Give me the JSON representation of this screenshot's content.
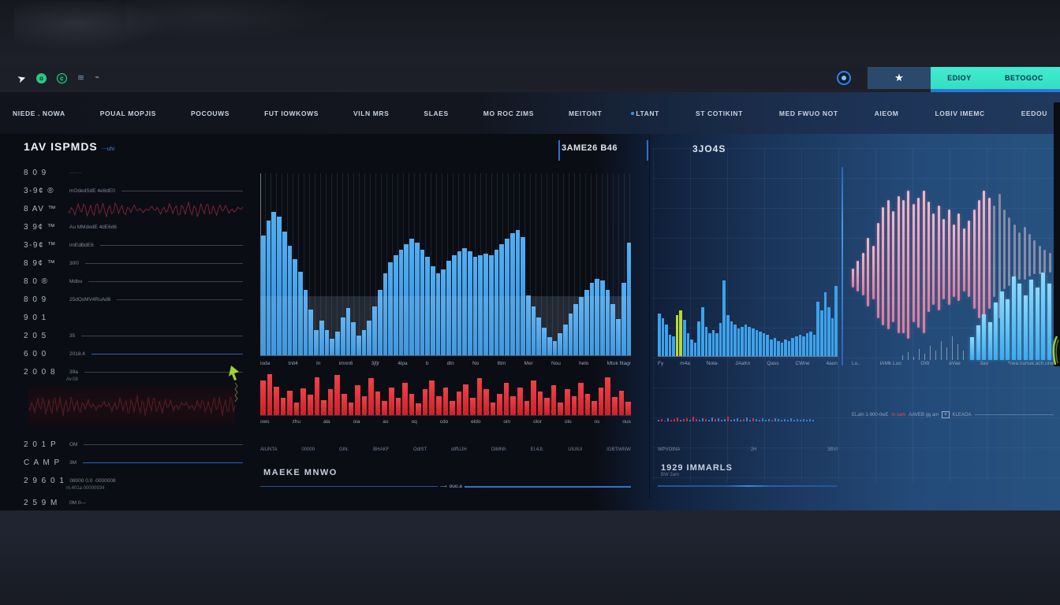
{
  "toolbar": {
    "icons": {
      "cursor": "➤",
      "app_a": "o",
      "app_b": "c",
      "layers": "≋",
      "pulse": "⌁",
      "star": "★"
    },
    "buy_label": "EDIOY",
    "sell_label": "BETOGOC"
  },
  "nav": {
    "left_items": [
      "NIEDE . NOWA",
      "POUAL MOPJIS",
      "POCOUWS",
      "FUT IOWKOWS",
      "VILN MRS",
      "SLAES",
      "MO ROC ZIMS",
      "MEITONT"
    ],
    "right_items": [
      "LTANT",
      "ST COTIKINT",
      "MED FWUO NOT",
      "AIEOM",
      "LOBIV IMEMC",
      "EEDOU"
    ]
  },
  "left_panel": {
    "title": "1AV ISPMDS",
    "title_suffix": "⋯uhi",
    "rows_top": [
      {
        "label": "8 0 9",
        "value": "·······",
        "line": "none"
      },
      {
        "label": "3-9¢ ®",
        "value": "mOdedSdE 4e8dE0",
        "line": "gray"
      },
      {
        "label": "8 AV ™",
        "value": "",
        "line": "spark"
      },
      {
        "label": "3 9¢ ™",
        "value": "Au MMdedE 4dE6d6",
        "line": "none"
      },
      {
        "label": "3-9¢ ™",
        "value": "imEdBdE6",
        "line": "gray"
      },
      {
        "label": "8 9¢ ™",
        "value": "30©",
        "line": "gray"
      },
      {
        "label": "8 0 ®",
        "value": "Mdbu",
        "line": "gray"
      },
      {
        "label": "8 0 9",
        "value": "25dOsMV4RuAd6",
        "line": "gray"
      },
      {
        "label": "9 0 1",
        "value": "",
        "line": "none"
      },
      {
        "label": "2 0 5",
        "value": "35",
        "line": "gray"
      },
      {
        "label": "6 0 0",
        "value": "2018.4",
        "line": "blue"
      },
      {
        "label": "2 0 0 8",
        "value": "39a",
        "line": "gray",
        "sub": "Av.08"
      }
    ],
    "rows_bottom": [
      {
        "label": "2 0 1 P",
        "value": "OM",
        "line": "gray"
      },
      {
        "label": "C A M P",
        "value": "3M",
        "line": "blue"
      },
      {
        "label": "2 9 6 0 1",
        "value": "08000   0.0   ·0000008",
        "line": "none",
        "sub": "m.401a  00000934"
      },
      {
        "label": "2 5 9 M",
        "value": "0M 0—",
        "line": "none"
      }
    ]
  },
  "main_panel": {
    "header_label": "3AME26 B46",
    "bars": [
      66,
      74,
      79,
      76,
      68,
      60,
      53,
      46,
      36,
      25,
      14,
      19,
      14,
      9,
      13,
      21,
      26,
      18,
      11,
      14,
      19,
      27,
      36,
      45,
      51,
      55,
      58,
      61,
      64,
      62,
      58,
      54,
      49,
      45,
      47,
      52,
      55,
      57,
      59,
      57,
      54,
      55,
      56,
      55,
      58,
      61,
      64,
      67,
      69,
      65,
      33,
      27,
      21,
      15,
      10,
      8,
      12,
      17,
      23,
      28,
      32,
      36,
      40,
      42,
      41,
      36,
      28,
      20,
      40,
      62
    ],
    "x_labels": [
      "ioda",
      "tnit4",
      "In",
      "imnn6",
      "3jfjr",
      "4ipa",
      "b",
      "dtn",
      "No",
      "Ittm",
      "Mer",
      "Nou",
      "helo",
      "Mtuk fitagr"
    ],
    "red_bars": [
      78,
      92,
      64,
      38,
      55,
      28,
      60,
      45,
      85,
      33,
      58,
      90,
      48,
      28,
      66,
      42,
      82,
      52,
      32,
      62,
      38,
      72,
      48,
      26,
      58,
      78,
      42,
      62,
      32,
      52,
      68,
      38,
      82,
      58,
      28,
      48,
      72,
      42,
      62,
      32,
      78,
      52,
      38,
      66,
      28,
      58,
      42,
      72,
      48,
      32,
      62,
      85,
      40,
      55,
      30
    ],
    "red_x_labels": [
      "ows",
      "zhu",
      "ala",
      "oia",
      "ao",
      "oq",
      "cdo",
      "eldo",
      "oin",
      "olor",
      "olo",
      "os",
      "ous"
    ],
    "tick_labels": [
      "AIUNTA",
      "00000",
      "GIN.",
      "BHAKF",
      "OdIST",
      "diffUJH",
      "OIMNh",
      "EI.4JI.",
      "UIUIUI",
      "IOBTiWNW"
    ],
    "footer_label": "MAEKE MNWO",
    "slider_arrow": "⟶",
    "slider_label": "ouo.a"
  },
  "mid_panel": {
    "title": "3JO4S",
    "bars": [
      52,
      46,
      38,
      26,
      24,
      50,
      56,
      44,
      28,
      20,
      16,
      42,
      60,
      36,
      28,
      32,
      28,
      40,
      92,
      50,
      42,
      38,
      34,
      36,
      38,
      36,
      34,
      32,
      30,
      28,
      26,
      20,
      22,
      18,
      16,
      20,
      18,
      22,
      24,
      26,
      24,
      28,
      30,
      26,
      66,
      56,
      78,
      60,
      46,
      86
    ],
    "green_indices": [
      5,
      6
    ],
    "x_labels": [
      "Fy",
      "m4a",
      "Nola-",
      "JAaKn",
      "Qass",
      "CWne",
      "4aun"
    ],
    "spark_h": [
      2,
      3,
      1,
      4,
      2,
      3,
      5,
      2,
      3,
      4,
      2,
      6,
      3,
      2,
      4,
      3,
      2,
      5,
      3,
      4,
      2,
      3,
      6,
      2,
      3,
      4,
      2,
      3,
      5,
      2,
      4,
      3,
      2,
      4,
      2,
      3,
      2,
      4,
      3,
      2,
      3,
      2,
      4,
      2,
      3,
      2,
      3,
      2,
      3,
      2
    ],
    "spark_c": "brrbrrrbrrbrrbbrbbrbbbrbbbbrbbrbbbbbrbbbbbbbbbbbbb",
    "tick_labels": [
      "WPVOtNA",
      "2H",
      "3BVt"
    ],
    "footer_label": "1929 IMMARLS",
    "footer_sub": "BW 2am"
  },
  "right_panel": {
    "candle_tops": [
      52,
      48,
      44,
      36,
      40,
      28,
      20,
      16,
      22,
      14,
      16,
      11,
      18,
      15,
      11,
      17,
      23,
      19,
      26,
      21,
      29,
      23,
      31,
      27,
      21,
      16,
      11,
      15,
      19,
      13,
      21,
      25,
      29,
      33,
      30,
      34,
      37,
      40,
      42,
      44
    ],
    "candle_heights": [
      10,
      16,
      22,
      36,
      28,
      50,
      62,
      68,
      58,
      72,
      70,
      78,
      62,
      68,
      75,
      58,
      48,
      55,
      42,
      50,
      38,
      46,
      33,
      40,
      52,
      62,
      72,
      58,
      48,
      65,
      42,
      36,
      30,
      25,
      28,
      22,
      18,
      15,
      12,
      10
    ],
    "cyan_bars": [
      12,
      18,
      24,
      20,
      30,
      36,
      32,
      44,
      40,
      34,
      42,
      38,
      46,
      40
    ],
    "spikes": [
      6,
      10,
      4,
      14,
      8,
      18,
      12,
      24,
      16,
      30,
      20,
      12
    ],
    "x_labels": [
      "Lu..",
      "IAMk Luo",
      "OW",
      "aVae",
      "3ao",
      "*nea.nunue.ach.une"
    ],
    "footer": {
      "left": "ELaIn 1-900-0wE",
      "alert": "m sam",
      "mid": "AAVEB gg  am",
      "box_glyph": "≡",
      "right": "KLEAOA"
    }
  },
  "colors": {
    "accent_blue": "#2f8fe0",
    "bar_blue": "#37a0ee",
    "red": "#e02832",
    "teal": "#3fe9c7",
    "green": "#b9d832",
    "pink": "#f2a6c0",
    "cyan": "#5ec9f6"
  }
}
